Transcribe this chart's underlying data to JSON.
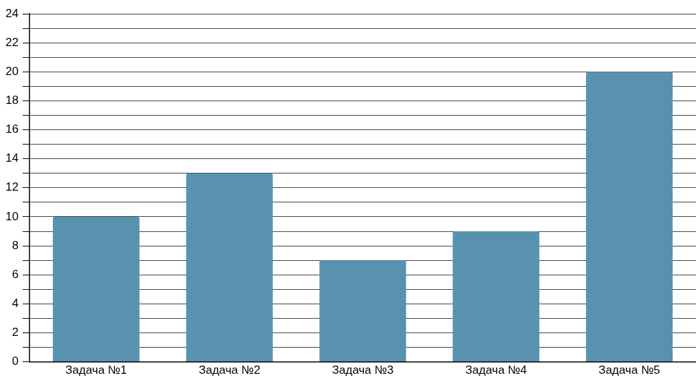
{
  "chart_data": {
    "type": "bar",
    "categories": [
      "Задача №1",
      "Задача №2",
      "Задача №3",
      "Задача №4",
      "Задача №5"
    ],
    "values": [
      10,
      13,
      7,
      9,
      20
    ],
    "color": "#5892b0",
    "ylim": [
      0,
      24
    ],
    "yticks": [
      0,
      {
        "value": 1,
        "label": null
      },
      2,
      {
        "value": 3,
        "label": null
      },
      4,
      {
        "value": 5,
        "label": null
      },
      6,
      {
        "value": 7,
        "label": null
      },
      8,
      {
        "value": 9,
        "label": null
      },
      10,
      {
        "value": 11,
        "label": null
      },
      12,
      {
        "value": 13,
        "label": null
      },
      14,
      {
        "value": 15,
        "label": null
      },
      16,
      {
        "value": 17,
        "label": null
      },
      18,
      {
        "value": 19,
        "label": null
      },
      20,
      {
        "value": 21,
        "label": null
      },
      22,
      {
        "value": 23,
        "label": null
      },
      24
    ],
    "grid": "y"
  }
}
